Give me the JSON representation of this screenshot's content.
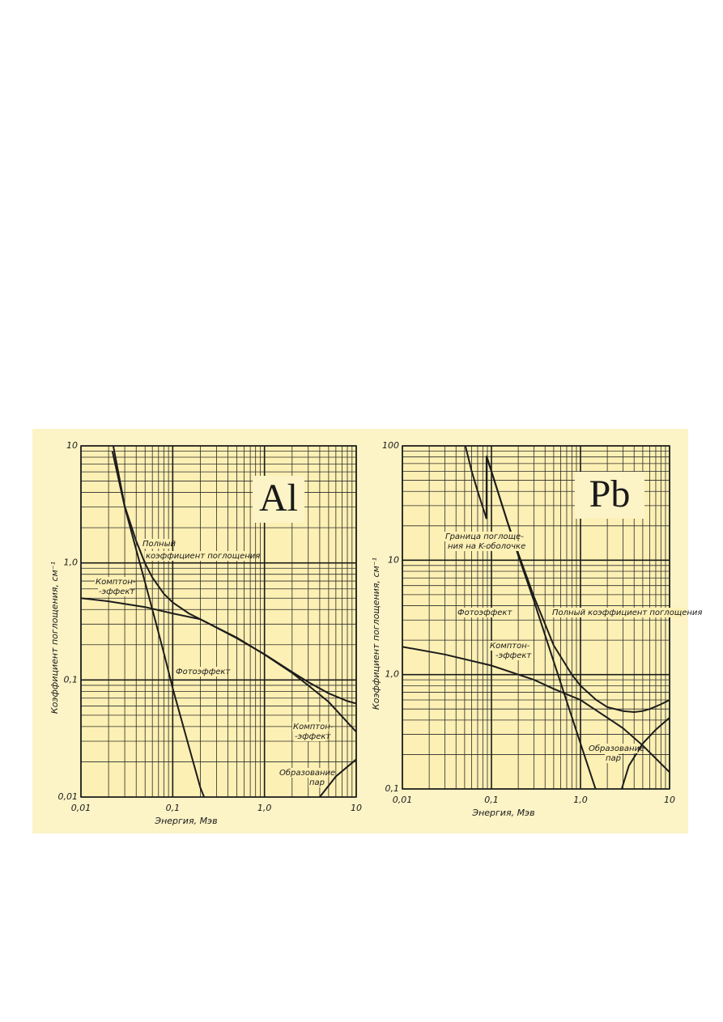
{
  "chart_data": [
    {
      "type": "line",
      "label": "Al",
      "xlabel": "Энергия, Мэв",
      "ylabel": "Коэффициент поглощения, см⁻¹",
      "log": true,
      "grid": true,
      "minor_grid": true,
      "xlim": [
        0.01,
        10
      ],
      "ylim": [
        0.01,
        10
      ],
      "xticks": [
        {
          "value": 0.01,
          "label": "0,01"
        },
        {
          "value": 0.1,
          "label": "0,1"
        },
        {
          "value": 1,
          "label": "1,0"
        },
        10
      ],
      "yticks": [
        {
          "value": 0.01,
          "label": "0,01"
        },
        {
          "value": 0.1,
          "label": "0,1"
        },
        {
          "value": 1,
          "label": "1,0"
        },
        10
      ],
      "series": [
        {
          "color": "#1c1c1c",
          "x": [
            0.0225,
            0.03,
            0.04,
            0.05,
            0.06,
            0.08,
            0.1,
            0.15,
            0.2,
            0.3,
            0.5,
            1,
            2,
            3,
            5,
            8,
            10
          ],
          "values": [
            10,
            3.05,
            1.54,
            0.99,
            0.75,
            0.545,
            0.46,
            0.37,
            0.33,
            0.28,
            0.227,
            0.166,
            0.117,
            0.096,
            0.077,
            0.066,
            0.063
          ]
        },
        {
          "color": "#1c1c1c",
          "x": [
            0.01,
            0.02,
            0.05,
            0.1,
            0.2,
            0.5,
            1,
            2,
            3,
            5,
            10
          ],
          "values": [
            0.5,
            0.47,
            0.42,
            0.37,
            0.33,
            0.23,
            0.165,
            0.115,
            0.09,
            0.065,
            0.036
          ]
        },
        {
          "color": "#1c1c1c",
          "x": [
            0.022,
            0.03,
            0.04,
            0.05,
            0.06,
            0.08,
            0.1,
            0.15,
            0.2,
            0.22
          ],
          "values": [
            9.0,
            3.0,
            1.3,
            0.68,
            0.4,
            0.17,
            0.085,
            0.027,
            0.012,
            0.01
          ]
        },
        {
          "color": "#1c1c1c",
          "x": [
            4,
            6,
            10
          ],
          "values": [
            0.01,
            0.015,
            0.021
          ]
        }
      ],
      "annotations": [
        {
          "lines": [
            "Полный",
            "коэффициент поглощения"
          ]
        },
        {
          "lines": [
            "Комптон-",
            "-эффект"
          ]
        },
        {
          "lines": [
            "Фотоэффект"
          ]
        },
        {
          "lines": [
            "Комптон-",
            "-эффект"
          ]
        },
        {
          "lines": [
            "Образование",
            "пар"
          ]
        }
      ]
    },
    {
      "type": "line",
      "label": "Pb",
      "xlabel": "Энергия, Мэв",
      "ylabel": "Коэффициент поглощения, см⁻¹",
      "log": true,
      "grid": true,
      "minor_grid": true,
      "xlim": [
        0.01,
        10
      ],
      "ylim": [
        0.1,
        100
      ],
      "xticks": [
        {
          "value": 0.01,
          "label": "0,01"
        },
        {
          "value": 0.1,
          "label": "0,1"
        },
        {
          "value": 1,
          "label": "1,0"
        },
        10
      ],
      "yticks": [
        {
          "value": 0.1,
          "label": "0,1"
        },
        {
          "value": 1,
          "label": "1,0"
        },
        10,
        100
      ],
      "series": [
        {
          "color": "#1c1c1c",
          "x": [
            0.088,
            0.1,
            0.15,
            0.2,
            0.3,
            0.5,
            0.8,
            1,
            1.5,
            2,
            3,
            4,
            5,
            6,
            8,
            10
          ],
          "values": [
            82,
            60,
            22,
            11.5,
            4.8,
            1.8,
            1.0,
            0.8,
            0.6,
            0.52,
            0.48,
            0.47,
            0.48,
            0.5,
            0.55,
            0.6
          ]
        },
        {
          "color": "#1c1c1c",
          "x": [
            0.01,
            0.03,
            0.1,
            0.3,
            0.5,
            1,
            2,
            3,
            5,
            10
          ],
          "values": [
            1.75,
            1.5,
            1.2,
            0.9,
            0.75,
            0.6,
            0.42,
            0.34,
            0.24,
            0.14
          ]
        },
        {
          "color": "#1c1c1c",
          "x": [
            0.051,
            0.06,
            0.07,
            0.088,
            0.088,
            0.1,
            0.15,
            0.2,
            0.3,
            0.5,
            1,
            1.5
          ],
          "values": [
            100,
            60,
            40,
            23,
            80,
            60,
            22,
            11,
            4.4,
            1.3,
            0.25,
            0.096
          ]
        },
        {
          "color": "#1c1c1c",
          "x": [
            2.9,
            3.5,
            5,
            7,
            10
          ],
          "values": [
            0.1,
            0.16,
            0.25,
            0.33,
            0.42
          ]
        }
      ],
      "annotations": [
        {
          "lines": [
            "Граница поглоще-",
            "ния на K-оболочке"
          ]
        },
        {
          "lines": [
            "Фотоэффект"
          ]
        },
        {
          "lines": [
            "Полный коэффициент поглощения"
          ]
        },
        {
          "lines": [
            "Комптон-",
            "-эффект"
          ]
        },
        {
          "lines": [
            "Образование",
            "пар"
          ]
        }
      ]
    }
  ]
}
